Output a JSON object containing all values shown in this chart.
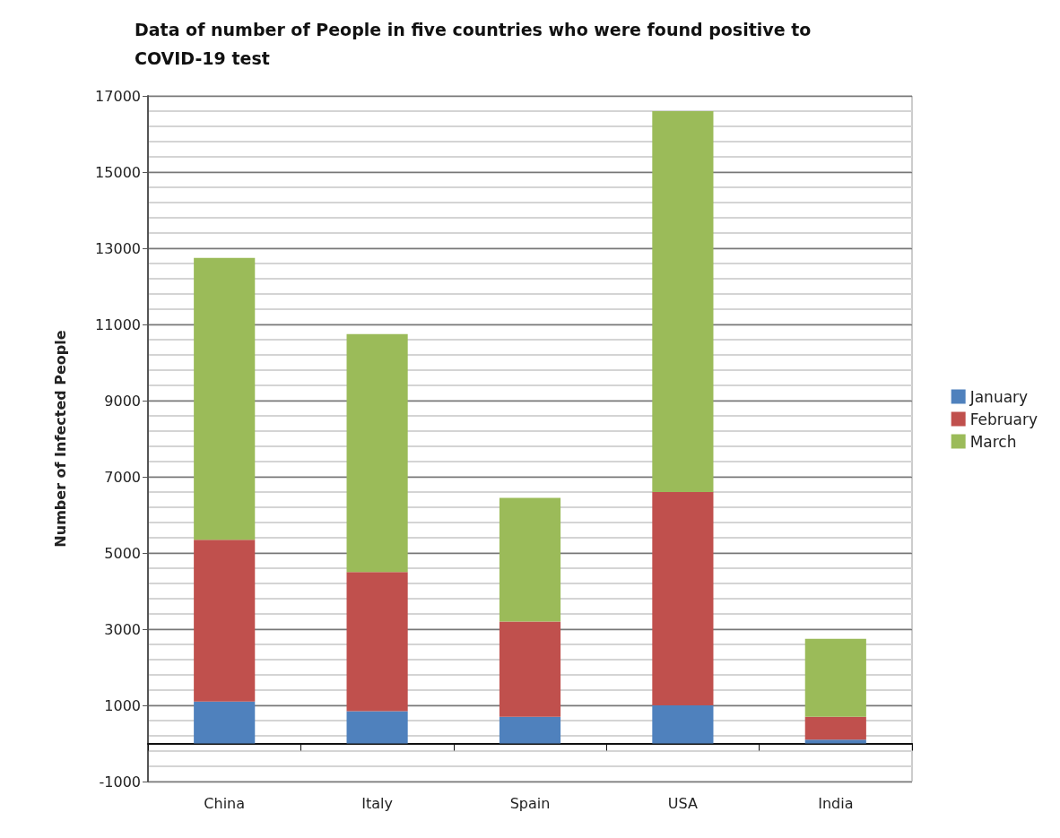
{
  "chart_data": {
    "type": "bar",
    "title": "Data of number of People in five countries who were found positive to\nCOVID-19 test",
    "ylabel": "Number of Infected People",
    "categories": [
      "China",
      "Italy",
      "Spain",
      "USA",
      "India"
    ],
    "stacked": true,
    "series": [
      {
        "name": "January",
        "color": "#4f81bd",
        "values": [
          1100,
          850,
          700,
          1000,
          100
        ]
      },
      {
        "name": "February",
        "color": "#c0504d",
        "values": [
          4250,
          3650,
          2500,
          5600,
          600
        ]
      },
      {
        "name": "March",
        "color": "#9bbb59",
        "values": [
          7400,
          6250,
          3250,
          10000,
          2050
        ]
      }
    ],
    "ylim": [
      -1000,
      17000
    ],
    "yticks": [
      -1000,
      1000,
      3000,
      5000,
      7000,
      9000,
      11000,
      13000,
      15000,
      17000
    ],
    "grid": true,
    "legend": "right"
  }
}
